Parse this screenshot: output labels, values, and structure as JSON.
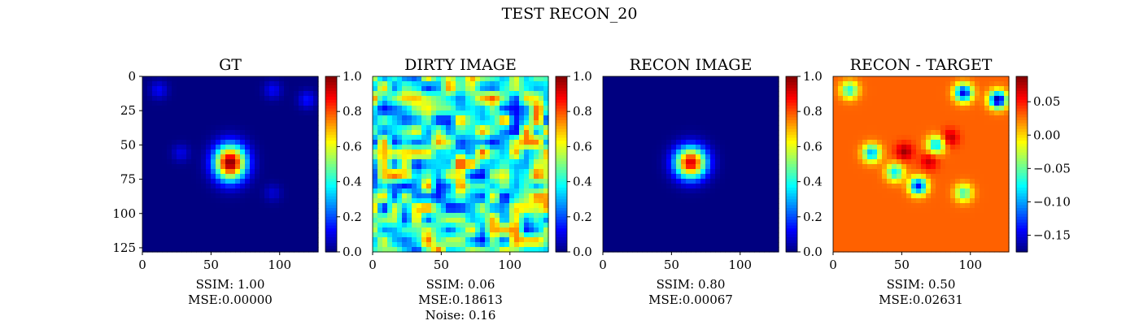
{
  "figure": {
    "suptitle": "TEST RECON_20"
  },
  "chart_data": [
    {
      "type": "heatmap",
      "title": "GT",
      "colormap": "jet",
      "image_size": [
        128,
        128
      ],
      "xticks": [
        0,
        50,
        100
      ],
      "yticks": [
        0,
        25,
        50,
        75,
        100,
        125
      ],
      "show_yticks": true,
      "colorbar": {
        "range": [
          0.0,
          1.0
        ],
        "ticks": [
          0.0,
          0.2,
          0.4,
          0.6,
          0.8,
          1.0
        ],
        "tick_labels": [
          "0.0",
          "0.2",
          "0.4",
          "0.6",
          "0.8",
          "1.0"
        ]
      },
      "features": [
        {
          "kind": "gaussian_blob",
          "center": [
            64,
            63
          ],
          "peak": 1.0,
          "sigma": [
            8,
            9
          ]
        },
        {
          "kind": "spot",
          "center": [
            12,
            10
          ],
          "value": 0.12
        },
        {
          "kind": "spot",
          "center": [
            95,
            10
          ],
          "value": 0.12
        },
        {
          "kind": "spot",
          "center": [
            120,
            17
          ],
          "value": 0.14
        },
        {
          "kind": "spot",
          "center": [
            28,
            56
          ],
          "value": 0.1
        },
        {
          "kind": "spot",
          "center": [
            95,
            85
          ],
          "value": 0.08
        }
      ],
      "stats": [
        "SSIM: 1.00",
        "MSE:0.00000"
      ]
    },
    {
      "type": "heatmap",
      "title": "DIRTY IMAGE",
      "colormap": "jet",
      "image_size": [
        128,
        128
      ],
      "xticks": [
        0,
        50,
        100
      ],
      "yticks": [
        0,
        25,
        50,
        75,
        100,
        125
      ],
      "show_yticks": false,
      "colorbar": {
        "range": [
          0.0,
          1.0
        ],
        "ticks": [
          0.0,
          0.2,
          0.4,
          0.6,
          0.8,
          1.0
        ],
        "tick_labels": [
          "0.0",
          "0.2",
          "0.4",
          "0.6",
          "0.8",
          "1.0"
        ]
      },
      "features": [
        {
          "kind": "noise_field",
          "mean": 0.45,
          "amplitude": 0.35
        },
        {
          "kind": "gaussian_blob",
          "center": [
            64,
            64
          ],
          "peak": 0.85,
          "sigma": [
            5,
            7
          ]
        }
      ],
      "stats": [
        "SSIM: 0.06",
        "MSE:0.18613",
        "Noise: 0.16"
      ]
    },
    {
      "type": "heatmap",
      "title": "RECON IMAGE",
      "colormap": "jet",
      "image_size": [
        128,
        128
      ],
      "xticks": [
        0,
        50,
        100
      ],
      "yticks": [
        0,
        25,
        50,
        75,
        100,
        125
      ],
      "show_yticks": false,
      "colorbar": {
        "range": [
          0.0,
          1.0
        ],
        "ticks": [
          0.0,
          0.2,
          0.4,
          0.6,
          0.8,
          1.0
        ],
        "tick_labels": [
          "0.0",
          "0.2",
          "0.4",
          "0.6",
          "0.8",
          "1.0"
        ]
      },
      "features": [
        {
          "kind": "gaussian_blob",
          "center": [
            64,
            63
          ],
          "peak": 0.92,
          "sigma": [
            8,
            8
          ]
        }
      ],
      "stats": [
        "SSIM: 0.80",
        "MSE:0.00067"
      ]
    },
    {
      "type": "heatmap",
      "title": "RECON - TARGET",
      "colormap": "jet",
      "image_size": [
        128,
        128
      ],
      "xticks": [
        0,
        50,
        100
      ],
      "yticks": [
        0,
        25,
        50,
        75,
        100,
        125
      ],
      "show_yticks": false,
      "colorbar": {
        "range": [
          -0.175,
          0.088
        ],
        "ticks": [
          0.05,
          0.0,
          -0.05,
          -0.1,
          -0.15
        ],
        "tick_labels": [
          "0.05",
          "0.00",
          "−0.05",
          "−0.10",
          "−0.15"
        ]
      },
      "features": [
        {
          "kind": "background",
          "value": 0.03
        },
        {
          "kind": "spot",
          "center": [
            12,
            10
          ],
          "value": -0.07
        },
        {
          "kind": "spot",
          "center": [
            95,
            12
          ],
          "value": -0.15
        },
        {
          "kind": "spot",
          "center": [
            120,
            17
          ],
          "value": -0.17
        },
        {
          "kind": "spot",
          "center": [
            28,
            56
          ],
          "value": -0.1
        },
        {
          "kind": "spot",
          "center": [
            52,
            55
          ],
          "value": 0.08
        },
        {
          "kind": "spot",
          "center": [
            70,
            62
          ],
          "value": 0.07
        },
        {
          "kind": "spot",
          "center": [
            85,
            45
          ],
          "value": 0.075
        },
        {
          "kind": "spot",
          "center": [
            62,
            80
          ],
          "value": -0.14
        },
        {
          "kind": "spot",
          "center": [
            45,
            70
          ],
          "value": -0.08
        },
        {
          "kind": "spot",
          "center": [
            75,
            50
          ],
          "value": -0.09
        },
        {
          "kind": "spot",
          "center": [
            95,
            85
          ],
          "value": -0.06
        }
      ],
      "stats": [
        "SSIM: 0.50",
        "MSE:0.02631"
      ]
    }
  ]
}
